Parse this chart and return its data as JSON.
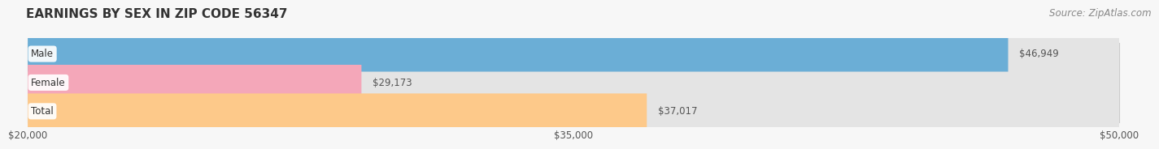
{
  "title": "EARNINGS BY SEX IN ZIP CODE 56347",
  "source": "Source: ZipAtlas.com",
  "categories": [
    "Male",
    "Female",
    "Total"
  ],
  "values": [
    46949,
    29173,
    37017
  ],
  "labels": [
    "$46,949",
    "$29,173",
    "$37,017"
  ],
  "bar_colors": [
    "#6baed6",
    "#f4a7b9",
    "#fdc98a"
  ],
  "xmin": 20000,
  "xmax": 50000,
  "xticks": [
    20000,
    35000,
    50000
  ],
  "xtick_labels": [
    "$20,000",
    "$35,000",
    "$50,000"
  ],
  "background_color": "#f7f7f7",
  "bar_bg_color": "#e4e4e4",
  "title_fontsize": 11,
  "source_fontsize": 8.5,
  "bar_height": 0.62
}
